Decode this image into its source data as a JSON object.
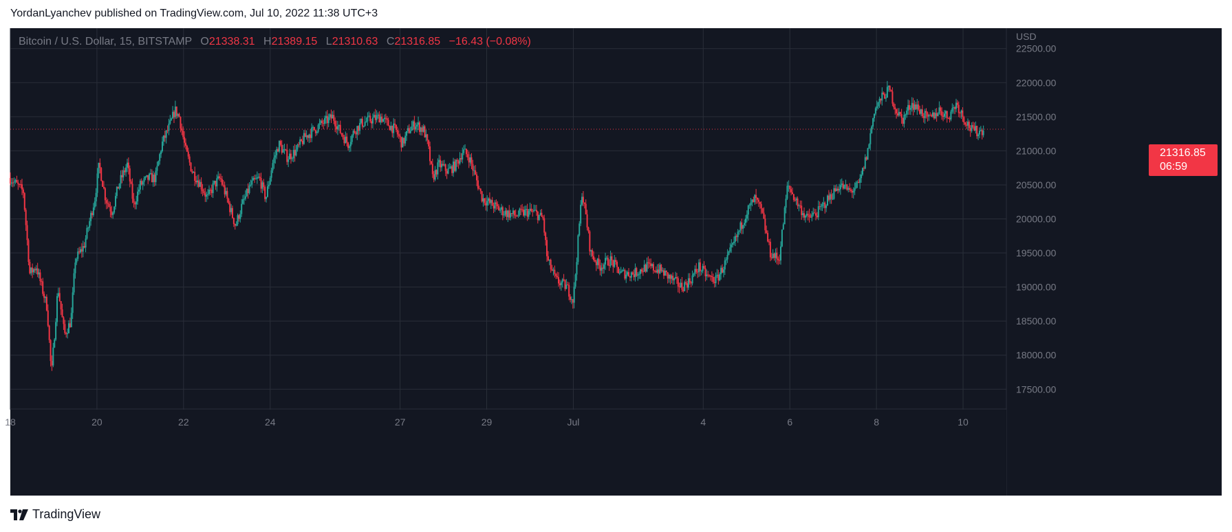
{
  "header": {
    "published_text": "YordanLyanchev published on TradingView.com, Jul 10, 2022 11:38 UTC+3"
  },
  "legend": {
    "symbol": "Bitcoin / U.S. Dollar, 15, BITSTAMP",
    "open_label": "O",
    "open": "21338.31",
    "high_label": "H",
    "high": "21389.15",
    "low_label": "L",
    "low": "21310.63",
    "close_label": "C",
    "close": "21316.85",
    "change": "−16.43 (−0.08%)"
  },
  "price_tag": {
    "price": "21316.85",
    "countdown": "06:59"
  },
  "footer": {
    "brand": "TradingView"
  },
  "colors": {
    "background": "#131722",
    "grid": "#2a2e39",
    "up": "#26a69a",
    "down": "#f23645",
    "axis_text": "#787b86",
    "last_price_line": "#f23645"
  },
  "chart_data": {
    "type": "candlestick",
    "title": "Bitcoin / U.S. Dollar, 15, BITSTAMP",
    "ylabel": "USD",
    "ylim": [
      17200,
      22800
    ],
    "y_ticks": [
      17500,
      18000,
      18500,
      19000,
      19500,
      20000,
      20500,
      21000,
      21500,
      22000,
      22500
    ],
    "y_tick_labels": [
      "17500.00",
      "18000.00",
      "18500.00",
      "19000.00",
      "19500.00",
      "20000.00",
      "20500.00",
      "21000.00",
      "21500.00",
      "22000.00",
      "22500.00"
    ],
    "x_ticks": [
      "18",
      "20",
      "22",
      "24",
      "27",
      "29",
      "Jul",
      "4",
      "6",
      "8",
      "10"
    ],
    "x_tick_days": [
      18,
      20,
      22,
      24,
      27,
      29,
      31,
      34,
      36,
      38,
      40
    ],
    "x_range_days": [
      18,
      41
    ],
    "last_price": 21316.85,
    "grid": true,
    "series_path": [
      [
        18.0,
        20600
      ],
      [
        18.3,
        20400
      ],
      [
        18.45,
        19200
      ],
      [
        18.6,
        19300
      ],
      [
        18.85,
        18700
      ],
      [
        18.95,
        17700
      ],
      [
        19.1,
        19000
      ],
      [
        19.25,
        18300
      ],
      [
        19.4,
        18500
      ],
      [
        19.5,
        19400
      ],
      [
        19.7,
        19600
      ],
      [
        19.95,
        20300
      ],
      [
        20.05,
        20800
      ],
      [
        20.2,
        20300
      ],
      [
        20.35,
        20100
      ],
      [
        20.5,
        20500
      ],
      [
        20.7,
        20800
      ],
      [
        20.85,
        20200
      ],
      [
        21.0,
        20500
      ],
      [
        21.2,
        20600
      ],
      [
        21.35,
        20600
      ],
      [
        21.5,
        21100
      ],
      [
        21.7,
        21400
      ],
      [
        21.8,
        21600
      ],
      [
        21.9,
        21500
      ],
      [
        22.05,
        21000
      ],
      [
        22.2,
        20700
      ],
      [
        22.4,
        20500
      ],
      [
        22.55,
        20300
      ],
      [
        22.7,
        20500
      ],
      [
        22.85,
        20600
      ],
      [
        23.0,
        20300
      ],
      [
        23.2,
        19900
      ],
      [
        23.35,
        20200
      ],
      [
        23.55,
        20500
      ],
      [
        23.75,
        20600
      ],
      [
        23.9,
        20300
      ],
      [
        24.05,
        20800
      ],
      [
        24.2,
        21100
      ],
      [
        24.4,
        20900
      ],
      [
        24.6,
        21000
      ],
      [
        24.8,
        21200
      ],
      [
        25.0,
        21300
      ],
      [
        25.2,
        21400
      ],
      [
        25.45,
        21500
      ],
      [
        25.6,
        21300
      ],
      [
        25.8,
        21100
      ],
      [
        25.95,
        21300
      ],
      [
        26.1,
        21400
      ],
      [
        26.3,
        21450
      ],
      [
        26.55,
        21500
      ],
      [
        26.7,
        21400
      ],
      [
        26.9,
        21300
      ],
      [
        27.05,
        21100
      ],
      [
        27.2,
        21300
      ],
      [
        27.35,
        21400
      ],
      [
        27.55,
        21300
      ],
      [
        27.65,
        21050
      ],
      [
        27.75,
        20600
      ],
      [
        27.9,
        20800
      ],
      [
        28.1,
        20700
      ],
      [
        28.3,
        20800
      ],
      [
        28.45,
        21000
      ],
      [
        28.6,
        20900
      ],
      [
        28.75,
        20600
      ],
      [
        28.9,
        20300
      ],
      [
        29.15,
        20200
      ],
      [
        29.4,
        20100
      ],
      [
        29.65,
        20050
      ],
      [
        29.9,
        20100
      ],
      [
        30.1,
        20100
      ],
      [
        30.3,
        20000
      ],
      [
        30.4,
        19400
      ],
      [
        30.6,
        19100
      ],
      [
        30.85,
        19000
      ],
      [
        31.0,
        18800
      ],
      [
        31.1,
        19600
      ],
      [
        31.2,
        20400
      ],
      [
        31.3,
        20000
      ],
      [
        31.4,
        19500
      ],
      [
        31.6,
        19300
      ],
      [
        31.85,
        19400
      ],
      [
        32.1,
        19200
      ],
      [
        32.4,
        19200
      ],
      [
        32.7,
        19300
      ],
      [
        33.0,
        19250
      ],
      [
        33.3,
        19100
      ],
      [
        33.5,
        19000
      ],
      [
        33.7,
        19100
      ],
      [
        33.9,
        19300
      ],
      [
        34.1,
        19150
      ],
      [
        34.3,
        19100
      ],
      [
        34.55,
        19400
      ],
      [
        34.75,
        19700
      ],
      [
        35.0,
        20100
      ],
      [
        35.2,
        20300
      ],
      [
        35.35,
        20100
      ],
      [
        35.55,
        19500
      ],
      [
        35.75,
        19400
      ],
      [
        35.95,
        20500
      ],
      [
        36.2,
        20200
      ],
      [
        36.4,
        20000
      ],
      [
        36.65,
        20100
      ],
      [
        36.9,
        20300
      ],
      [
        37.15,
        20500
      ],
      [
        37.4,
        20400
      ],
      [
        37.6,
        20500
      ],
      [
        37.8,
        21000
      ],
      [
        37.95,
        21600
      ],
      [
        38.15,
        21800
      ],
      [
        38.3,
        21900
      ],
      [
        38.45,
        21600
      ],
      [
        38.6,
        21450
      ],
      [
        38.8,
        21700
      ],
      [
        39.0,
        21600
      ],
      [
        39.2,
        21450
      ],
      [
        39.45,
        21600
      ],
      [
        39.65,
        21500
      ],
      [
        39.85,
        21700
      ],
      [
        40.0,
        21500
      ],
      [
        40.2,
        21300
      ],
      [
        40.35,
        21280
      ],
      [
        40.5,
        21316.85
      ]
    ]
  }
}
